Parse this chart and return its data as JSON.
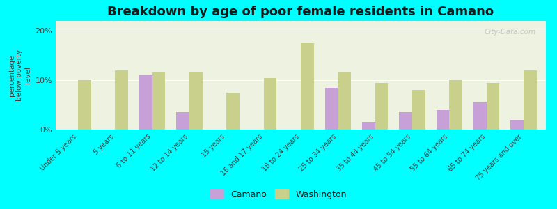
{
  "title": "Breakdown by age of poor female residents in Camano",
  "ylabel": "percentage\nbelow poverty\nlevel",
  "background_color": "#00ffff",
  "plot_bg_color": "#eef2e0",
  "categories": [
    "Under 5 years",
    "5 years",
    "6 to 11 years",
    "12 to 14 years",
    "15 years",
    "16 and 17 years",
    "18 to 24 years",
    "25 to 34 years",
    "35 to 44 years",
    "45 to 54 years",
    "55 to 64 years",
    "65 to 74 years",
    "75 years and over"
  ],
  "camano": [
    0,
    0,
    11,
    3.5,
    0,
    0,
    0,
    8.5,
    1.5,
    3.5,
    4,
    5.5,
    2
  ],
  "washington": [
    10,
    12,
    11.5,
    11.5,
    7.5,
    10.5,
    17.5,
    11.5,
    9.5,
    8,
    10,
    9.5,
    12
  ],
  "camano_color": "#c8a0d8",
  "washington_color": "#c8d08c",
  "ylim": [
    0,
    22
  ],
  "yticks": [
    0,
    10,
    20
  ],
  "ytick_labels": [
    "0%",
    "10%",
    "20%"
  ],
  "bar_width": 0.35,
  "watermark": "City-Data.com"
}
